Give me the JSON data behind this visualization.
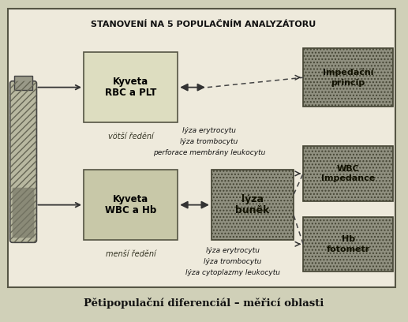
{
  "title": "STANOVENÍ NA 5 POPULAČNÍM ANALYZÁTORU",
  "caption": "Pětipopulační diferenciál – měřicí oblasti",
  "bg_outer": "#d8d8c8",
  "bg_inner": "#ece8d8",
  "kyveta1_lines": [
    "Kyveta",
    "RBC a PLT"
  ],
  "kyveta1_sub": "vötší ředění",
  "kyveta2_lines": [
    "Kyveta",
    "WBC a Hb"
  ],
  "kyveta2_sub": "menší ředění",
  "lyza_box_lines": [
    "lýza",
    "buněk"
  ],
  "impedancni_lines": [
    "Impedační",
    "princip"
  ],
  "wbc_lines": [
    "WBC",
    "Impedance"
  ],
  "hb_lines": [
    "Hb",
    "fotometr"
  ],
  "upper_text_lines": [
    "lýza erytrocytu",
    "lýza trombocytu",
    "perforace membrány leukocytu"
  ],
  "lower_text_lines": [
    "lýza erytrocytu",
    "lýza trombocytu",
    "lýza cytoplazmy leukocytu"
  ]
}
